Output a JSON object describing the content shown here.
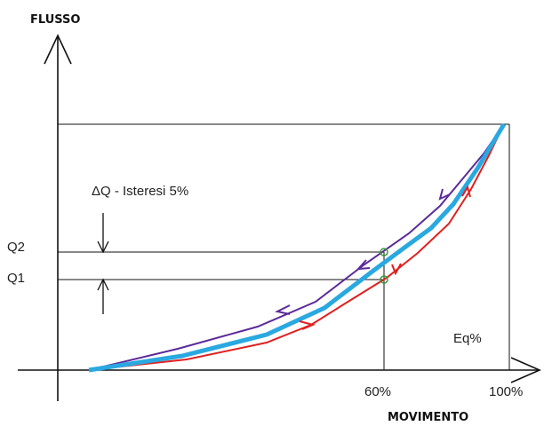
{
  "axes": {
    "y_title": "FLUSSO",
    "x_title": "MOVIMENTO",
    "x_ticks": [
      "60%",
      "100%"
    ]
  },
  "labels": {
    "delta_q": "ΔQ - Isteresi 5%",
    "q2": "Q2",
    "q1": "Q1",
    "curve": "Eq%"
  },
  "colors": {
    "axis": "#111111",
    "main_curve": "#2aa8e0",
    "opening_curve": "#e02020",
    "closing_curve": "#5b2a9a",
    "marker": "#3a9a3a"
  }
}
